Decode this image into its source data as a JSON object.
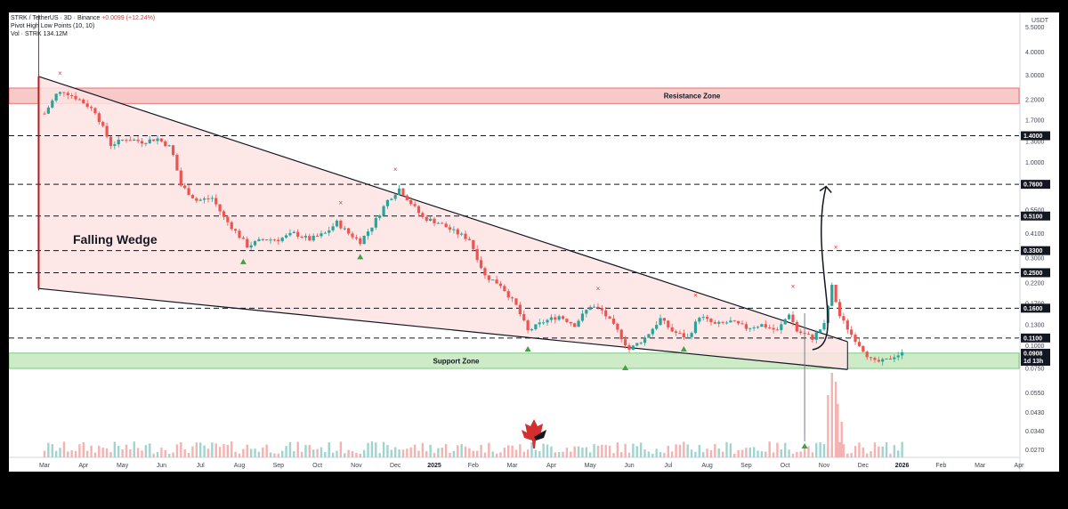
{
  "header": {
    "symbol_line": "STRK / TetherUS · 3D · Binance",
    "change": "+0.0099 (+12.24%)",
    "indicator_line": "Pivot High Low Points (10, 10)",
    "volume_line": "Vol · STRK  134.12M"
  },
  "currency_label": "USDT",
  "colors": {
    "up": "#26a69a",
    "down": "#ef5350",
    "resistance_zone": "#f8c9c9",
    "support_zone": "#cdebc7",
    "wedge_fill": "#fde3e3",
    "price_tag": "#131722",
    "current_tag": "#131722"
  },
  "chart_data": {
    "type": "candlestick",
    "y_scale": "log",
    "ylim": [
      0.0245,
      6.6
    ],
    "y_ticks": [
      "5.5000",
      "4.0000",
      "3.0000",
      "2.2000",
      "1.7000",
      "1.3000",
      "1.0000",
      "0.5500",
      "0.4100",
      "0.3000",
      "0.2200",
      "0.1700",
      "0.1300",
      "0.1000",
      "0.0750",
      "0.0550",
      "0.0430",
      "0.0340",
      "0.0270"
    ],
    "x_ticks": [
      "Mar",
      "Apr",
      "May",
      "Jun",
      "Jul",
      "Aug",
      "Sep",
      "Oct",
      "Nov",
      "Dec",
      "2025",
      "Feb",
      "Mar",
      "Apr",
      "May",
      "Jun",
      "Jul",
      "Aug",
      "Sep",
      "Oct",
      "Nov",
      "Dec",
      "2026",
      "Feb",
      "Mar",
      "Apr"
    ],
    "x_bold": [
      "2025",
      "2026"
    ],
    "x_months": [
      0,
      1,
      2,
      3,
      4,
      5,
      6,
      7,
      8,
      9,
      10,
      11,
      12,
      13,
      14,
      15,
      16,
      17,
      18,
      19,
      20,
      21,
      22,
      23,
      24,
      25
    ],
    "price_levels": [
      "1.4000",
      "0.7600",
      "0.5100",
      "0.3300",
      "0.2500",
      "0.1600",
      "0.1100"
    ],
    "current_price": "0.0908",
    "current_timer": "1d 13h",
    "resistance_zone": {
      "label": "Resistance Zone",
      "low": 2.1,
      "high": 2.55
    },
    "support_zone": {
      "label": "Support Zone",
      "low": 0.075,
      "high": 0.091
    },
    "pattern_label": "Falling Wedge",
    "wedge": {
      "upper": [
        [
          -0.15,
          2.95
        ],
        [
          20.6,
          0.105
        ]
      ],
      "lower": [
        [
          -0.15,
          0.205
        ],
        [
          20.6,
          0.074
        ]
      ]
    },
    "projection": {
      "start": [
        19.7,
        0.095
      ],
      "end": [
        20.05,
        0.74
      ]
    },
    "pivot_highs": [
      [
        0.4,
        2.85
      ],
      [
        7.6,
        0.56
      ],
      [
        9.0,
        0.85
      ],
      [
        14.2,
        0.19
      ],
      [
        16.7,
        0.175
      ],
      [
        19.2,
        0.195
      ],
      [
        20.3,
        0.32
      ]
    ],
    "pivot_lows": [
      [
        5.1,
        0.315
      ],
      [
        8.1,
        0.335
      ],
      [
        12.4,
        0.105
      ],
      [
        14.9,
        0.083
      ],
      [
        16.4,
        0.105
      ],
      [
        19.5,
        0.031
      ]
    ],
    "anchors": [
      [
        0.0,
        1.85
      ],
      [
        0.3,
        2.35
      ],
      [
        0.5,
        2.45
      ],
      [
        0.9,
        2.2
      ],
      [
        1.3,
        1.9
      ],
      [
        1.7,
        1.25
      ],
      [
        2.1,
        1.35
      ],
      [
        2.5,
        1.3
      ],
      [
        2.9,
        1.35
      ],
      [
        3.25,
        1.2
      ],
      [
        3.5,
        0.75
      ],
      [
        3.9,
        0.62
      ],
      [
        4.3,
        0.64
      ],
      [
        4.6,
        0.5
      ],
      [
        4.9,
        0.42
      ],
      [
        5.2,
        0.35
      ],
      [
        5.6,
        0.38
      ],
      [
        6.0,
        0.38
      ],
      [
        6.4,
        0.41
      ],
      [
        6.8,
        0.38
      ],
      [
        7.2,
        0.41
      ],
      [
        7.5,
        0.47
      ],
      [
        7.8,
        0.41
      ],
      [
        8.1,
        0.37
      ],
      [
        8.4,
        0.45
      ],
      [
        8.8,
        0.62
      ],
      [
        9.1,
        0.72
      ],
      [
        9.4,
        0.6
      ],
      [
        9.7,
        0.5
      ],
      [
        10.1,
        0.47
      ],
      [
        10.5,
        0.42
      ],
      [
        10.9,
        0.38
      ],
      [
        11.3,
        0.24
      ],
      [
        11.7,
        0.215
      ],
      [
        12.1,
        0.165
      ],
      [
        12.4,
        0.12
      ],
      [
        12.8,
        0.135
      ],
      [
        13.2,
        0.145
      ],
      [
        13.6,
        0.13
      ],
      [
        14.0,
        0.165
      ],
      [
        14.3,
        0.155
      ],
      [
        14.7,
        0.12
      ],
      [
        15.0,
        0.095
      ],
      [
        15.4,
        0.11
      ],
      [
        15.8,
        0.14
      ],
      [
        16.1,
        0.12
      ],
      [
        16.5,
        0.11
      ],
      [
        16.8,
        0.145
      ],
      [
        17.2,
        0.13
      ],
      [
        17.6,
        0.135
      ],
      [
        18.0,
        0.125
      ],
      [
        18.4,
        0.13
      ],
      [
        18.8,
        0.12
      ],
      [
        19.1,
        0.15
      ],
      [
        19.3,
        0.12
      ],
      [
        19.7,
        0.11
      ],
      [
        20.0,
        0.13
      ],
      [
        20.2,
        0.21
      ],
      [
        20.4,
        0.145
      ],
      [
        20.7,
        0.115
      ],
      [
        21.0,
        0.095
      ],
      [
        21.25,
        0.081
      ],
      [
        21.55,
        0.082
      ],
      [
        21.8,
        0.088
      ],
      [
        22.05,
        0.0908
      ]
    ]
  }
}
